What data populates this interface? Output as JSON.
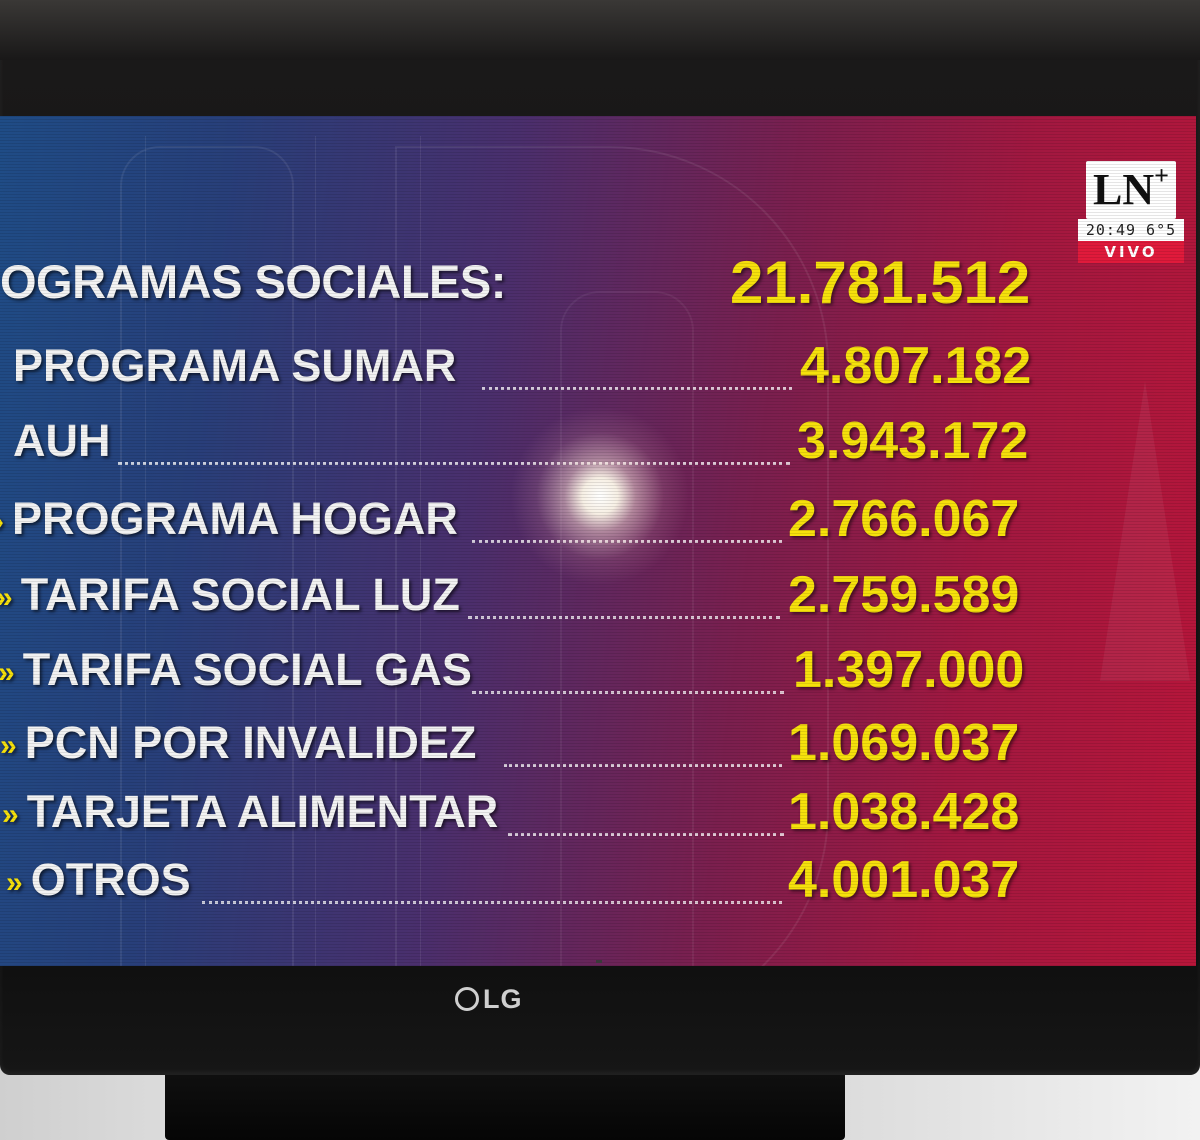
{
  "tv": {
    "brand": "LG"
  },
  "channel": {
    "logo": "LN",
    "logo_plus": "+",
    "time": "20:49",
    "temperature": "6°5",
    "live_label": "VIVO"
  },
  "header": {
    "title": "OGRAMAS SOCIALES:",
    "total": "21.781.512"
  },
  "rows": [
    {
      "bullet": "",
      "label": "PROGRAMA SUMAR",
      "value": "4.807.182"
    },
    {
      "bullet": "",
      "label": "AUH",
      "value": "3.943.172"
    },
    {
      "bullet": "›",
      "label": "PROGRAMA HOGAR",
      "value": "2.766.067"
    },
    {
      "bullet": "»",
      "label": "TARIFA SOCIAL LUZ",
      "value": "2.759.589"
    },
    {
      "bullet": "»",
      "label": "TARIFA SOCIAL GAS",
      "value": "1.397.000"
    },
    {
      "bullet": "»",
      "label": "PCN POR INVALIDEZ",
      "value": "1.069.037"
    },
    {
      "bullet": "»",
      "label": "TARJETA ALIMENTAR",
      "value": "1.038.428"
    },
    {
      "bullet": "»",
      "label": "OTROS",
      "value": "4.001.037"
    }
  ],
  "colors": {
    "value_yellow": "#f6e10c",
    "live_red": "#e01a3b",
    "label_white": "#f2f2f2"
  }
}
